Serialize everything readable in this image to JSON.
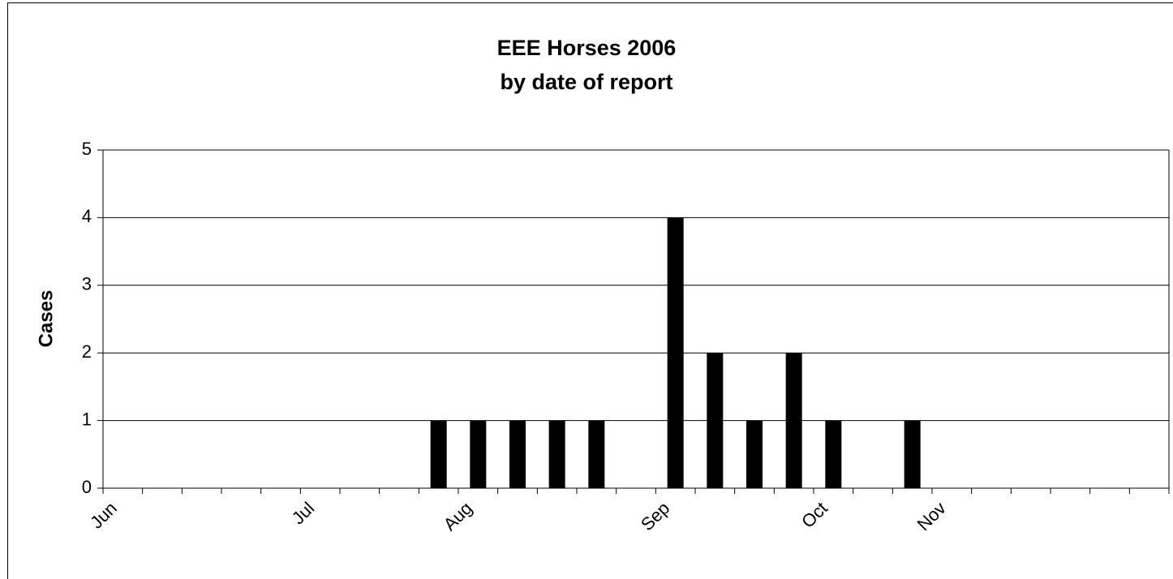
{
  "chart_data": {
    "type": "bar",
    "title": "EEE Horses 2006",
    "subtitle": "by date of report",
    "y_label": "Cases",
    "categories": [
      "Jun",
      null,
      null,
      null,
      null,
      "Jul",
      null,
      null,
      null,
      "Aug",
      null,
      null,
      null,
      null,
      "Sep",
      null,
      null,
      null,
      "Oct",
      null,
      null,
      "Nov",
      null,
      null,
      null,
      null,
      null
    ],
    "values": [
      0,
      0,
      0,
      0,
      0,
      0,
      0,
      0,
      1,
      1,
      1,
      1,
      1,
      0,
      4,
      2,
      1,
      2,
      1,
      0,
      1,
      0,
      0,
      0,
      0,
      0,
      0
    ],
    "color": "#000000",
    "ylim": [
      0,
      5
    ],
    "yticks": [
      0,
      1,
      2,
      3,
      4,
      5
    ],
    "grid": true
  }
}
